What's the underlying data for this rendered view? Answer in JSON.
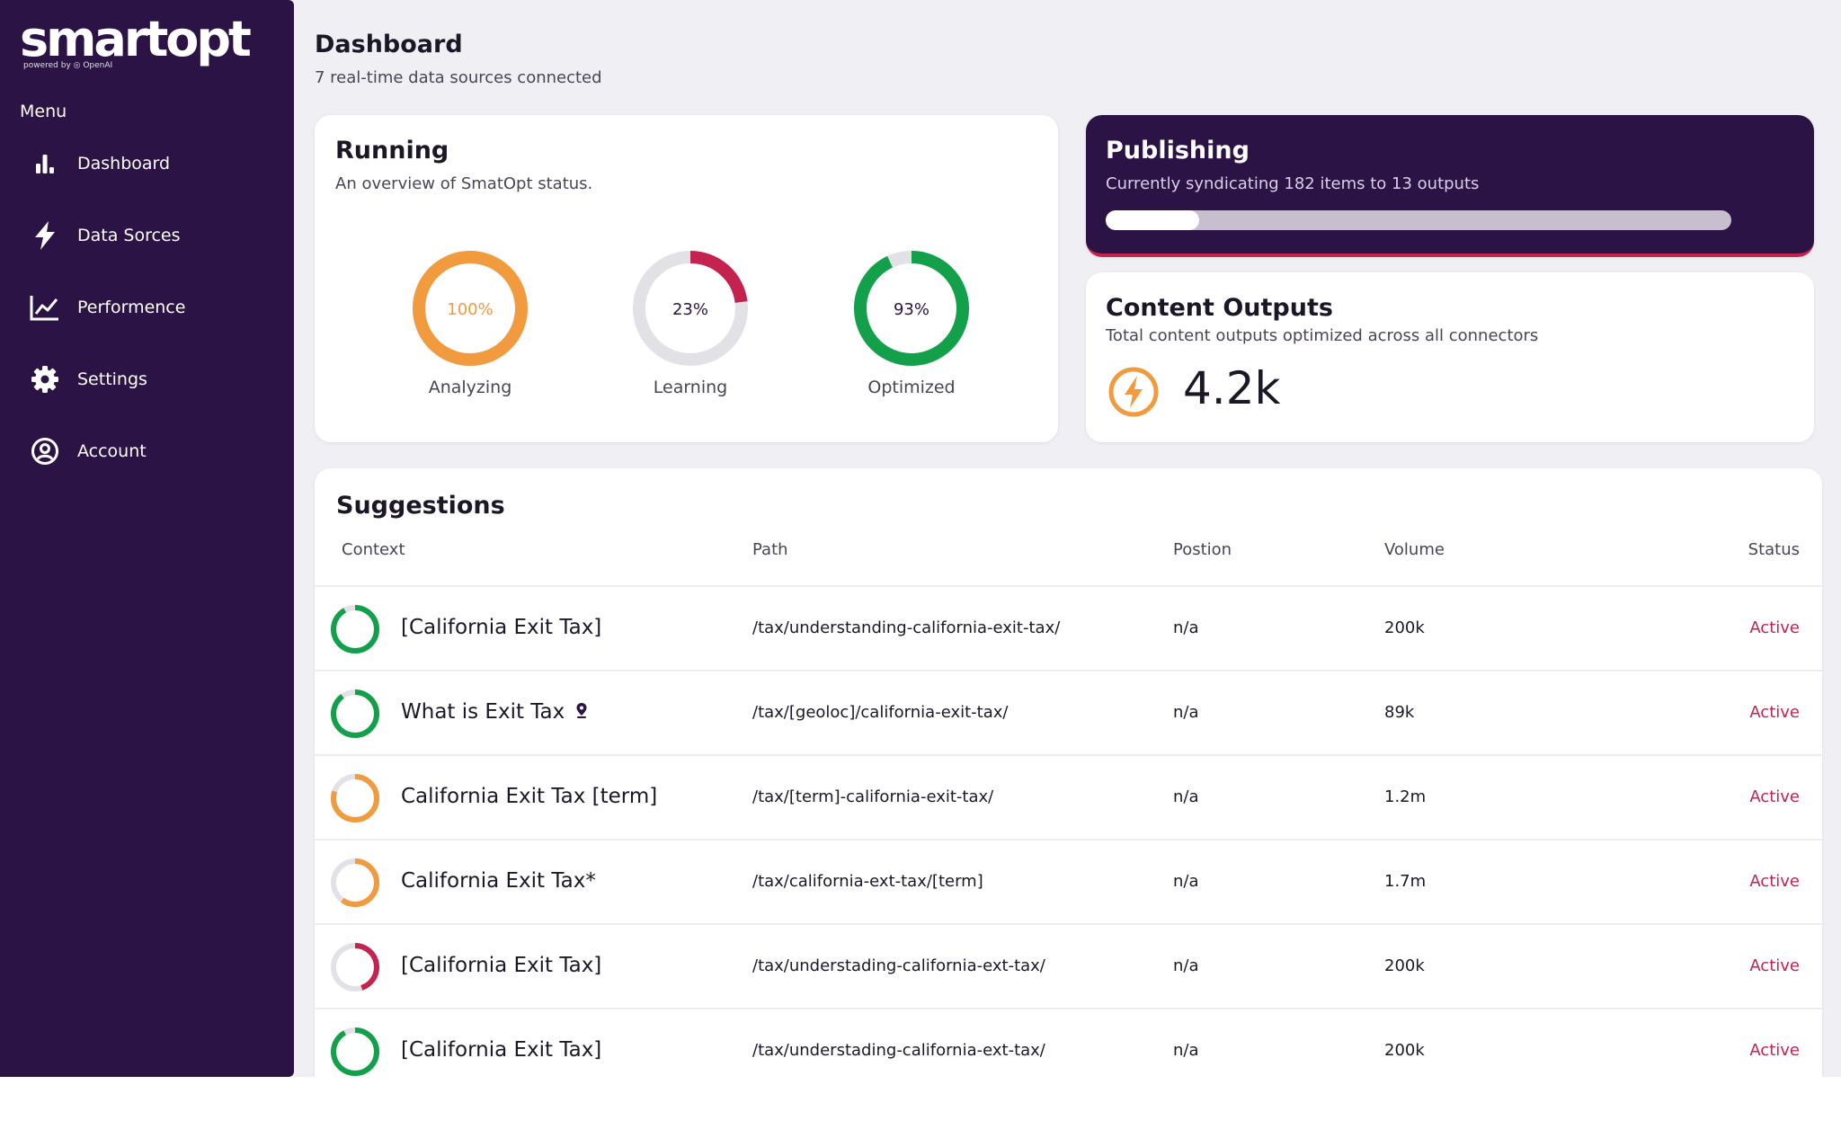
{
  "app": {
    "logo_text": "smartopt",
    "logo_sub": "powered by ◎ OpenAI"
  },
  "sidebar": {
    "menu_label": "Menu",
    "items": [
      {
        "label": "Dashboard",
        "icon": "bar-chart-icon"
      },
      {
        "label": "Data Sorces",
        "icon": "lightning-icon"
      },
      {
        "label": "Performence",
        "icon": "line-chart-icon"
      },
      {
        "label": "Settings",
        "icon": "gear-icon"
      },
      {
        "label": "Account",
        "icon": "user-circle-icon"
      }
    ]
  },
  "header": {
    "title": "Dashboard",
    "subtitle": "7 real-time data sources connected"
  },
  "running": {
    "title": "Running",
    "subtitle": "An overview of SmatOpt  status.",
    "rings": [
      {
        "label": "Analyzing",
        "value_text": "100%",
        "percent": 100,
        "color": "#f19a3e",
        "text_color": "#f19a3e"
      },
      {
        "label": "Learning",
        "value_text": "23%",
        "percent": 23,
        "color": "#c4224f",
        "text_color": "#2c1346"
      },
      {
        "label": "Optimized",
        "value_text": "93%",
        "percent": 93,
        "color": "#12a04a",
        "text_color": "#2c1346"
      }
    ]
  },
  "publishing": {
    "title": "Publishing",
    "subtitle": "Currently syndicating 182 items to 13 outputs",
    "progress": 0.15
  },
  "outputs": {
    "title": "Content Outputs",
    "subtitle": "Total content outputs optimized across all connectors",
    "value": "4.2k",
    "icon": "lightning-circle-icon"
  },
  "suggestions": {
    "title": "Suggestions",
    "columns": [
      "Context",
      "Path",
      "Postion",
      "Volume",
      "Status"
    ],
    "rows": [
      {
        "context": "[California Exit Tax]",
        "path": "/tax/understanding-california-exit-tax/",
        "position": "n/a",
        "volume": "200k",
        "status": "Active",
        "ring_percent": 92,
        "ring_color": "#12a04a",
        "pin": false
      },
      {
        "context": "What is Exit Tax",
        "path": "/tax/[geoloc]/california-exit-tax/",
        "position": "n/a",
        "volume": "89k",
        "status": "Active",
        "ring_percent": 90,
        "ring_color": "#12a04a",
        "pin": true
      },
      {
        "context": "California Exit Tax [term]",
        "path": "/tax/[term]-california-exit-tax/",
        "position": "n/a",
        "volume": "1.2m",
        "status": "Active",
        "ring_percent": 80,
        "ring_color": "#f19a3e",
        "pin": false
      },
      {
        "context": "California Exit Tax*",
        "path": "/tax/california-ext-tax/[term]",
        "position": "n/a",
        "volume": "1.7m",
        "status": "Active",
        "ring_percent": 60,
        "ring_color": "#f19a3e",
        "pin": false
      },
      {
        "context": "[California Exit Tax]",
        "path": "/tax/understading-california-ext-tax/",
        "position": "n/a",
        "volume": "200k",
        "status": "Active",
        "ring_percent": 45,
        "ring_color": "#c4224f",
        "pin": false
      },
      {
        "context": "[California Exit Tax]",
        "path": "/tax/understading-california-ext-tax/",
        "position": "n/a",
        "volume": "200k",
        "status": "Active",
        "ring_percent": 92,
        "ring_color": "#12a04a",
        "pin": false
      }
    ]
  },
  "colors": {
    "brand": "#2c1346",
    "accent": "#c4224f",
    "green": "#12a04a",
    "orange": "#f19a3e",
    "track": "#e2e2e6"
  }
}
